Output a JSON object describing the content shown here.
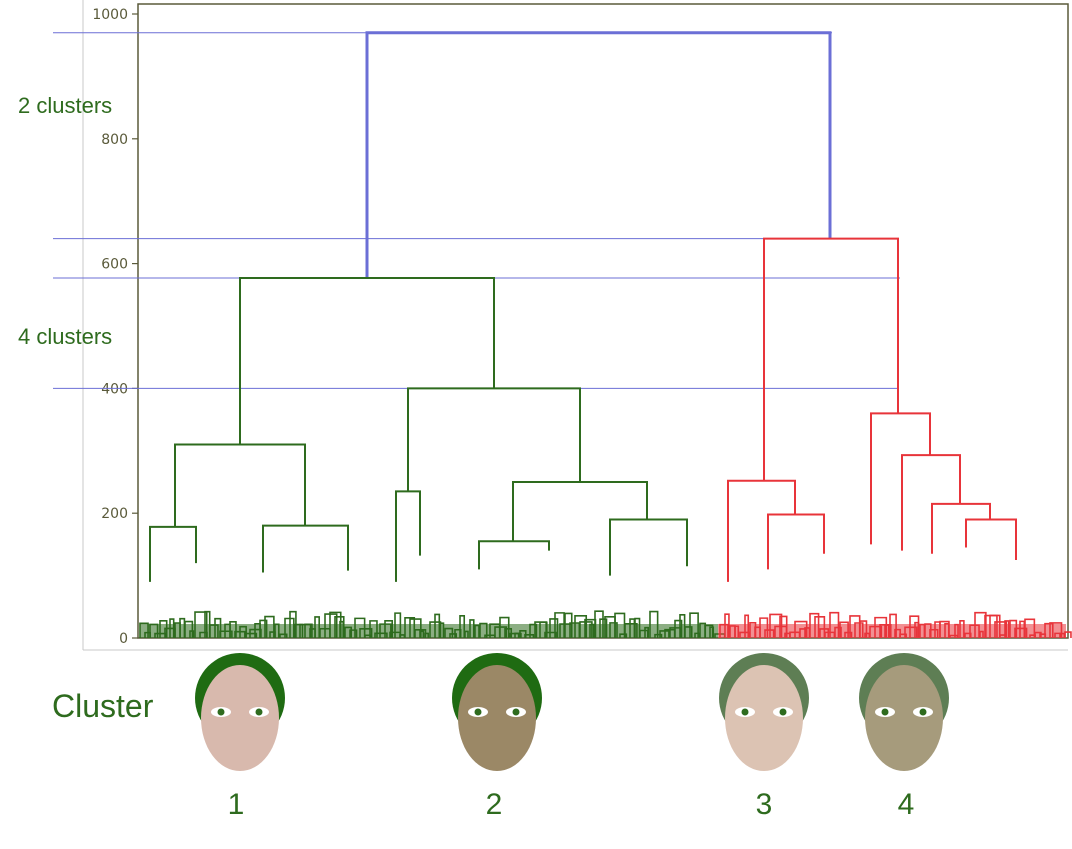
{
  "chart_data": {
    "type": "dendrogram",
    "title": "",
    "xlabel": "",
    "ylabel": "",
    "ylim": [
      0,
      1000
    ],
    "y_ticks": [
      0,
      200,
      400,
      600,
      800,
      1000
    ],
    "grid": false,
    "colors": {
      "root_link": "#6b6fd6",
      "green_branch": "#2e6b1e",
      "red_branch": "#e8343a",
      "cut_line": "#6b6fd6",
      "axis": "#5a5a3a"
    },
    "links": {
      "root": {
        "height": 970,
        "children": [
          "green-root",
          "red-root"
        ],
        "color": "root_link"
      },
      "green-root": {
        "height": 577,
        "children": [
          "g1",
          "g2"
        ],
        "color": "green_branch"
      },
      "red-root": {
        "height": 640,
        "children": [
          "r3",
          "r4"
        ],
        "color": "green_branch"
      },
      "g1": {
        "height": 310,
        "children": [
          "g1a",
          "g1b"
        ]
      },
      "g1a": {
        "height": 178,
        "children": [
          "g1a1",
          "g1a2"
        ]
      },
      "g1b": {
        "height": 180,
        "children": [
          "g1b1",
          "g1b2"
        ]
      },
      "g2": {
        "height": 400,
        "children": [
          "g2a",
          "g2b"
        ]
      },
      "g2a": {
        "height": 235,
        "children": [
          "g2a1",
          "g2a2"
        ]
      },
      "g2b": {
        "height": 250,
        "children": [
          "g2b1",
          "g2b2"
        ]
      },
      "g2b1": {
        "height": 155,
        "children": [
          "g2b1a",
          "g2b1b"
        ]
      },
      "g2b2": {
        "height": 190,
        "children": [
          "g2b2a",
          "g2b2b"
        ]
      },
      "r3": {
        "height": 252,
        "children": [
          "r3a",
          "r3b"
        ]
      },
      "r3b": {
        "height": 198,
        "children": [
          "r3b1",
          "r3b2"
        ]
      },
      "r4": {
        "height": 360,
        "children": [
          "r4a",
          "r4b"
        ]
      },
      "r4b": {
        "height": 293,
        "children": [
          "r4b1",
          "r4b2"
        ]
      },
      "r4b2": {
        "height": 215,
        "children": [
          "r4b2a",
          "r4b2b"
        ]
      },
      "r4b2b": {
        "height": 190,
        "children": [
          "r4b2b1",
          "r4b2b2"
        ]
      }
    },
    "cut_lines": [
      {
        "height": 970,
        "label": "2 clusters"
      },
      {
        "height": 640,
        "label": ""
      },
      {
        "height": 577,
        "label": "4 clusters"
      },
      {
        "height": 400,
        "label": ""
      }
    ]
  },
  "annotations": {
    "two_clusters": "2 clusters",
    "four_clusters": "4 clusters",
    "cluster_word": "Cluster"
  },
  "clusters": [
    {
      "label": "1",
      "skin": "#d8b9ad",
      "hair": "#1f6b12"
    },
    {
      "label": "2",
      "skin": "#9b8866",
      "hair": "#1f6b12"
    },
    {
      "label": "3",
      "skin": "#dcc3b3",
      "hair": "#5e7e54"
    },
    {
      "label": "4",
      "skin": "#a69b7c",
      "hair": "#5e7e54"
    }
  ]
}
